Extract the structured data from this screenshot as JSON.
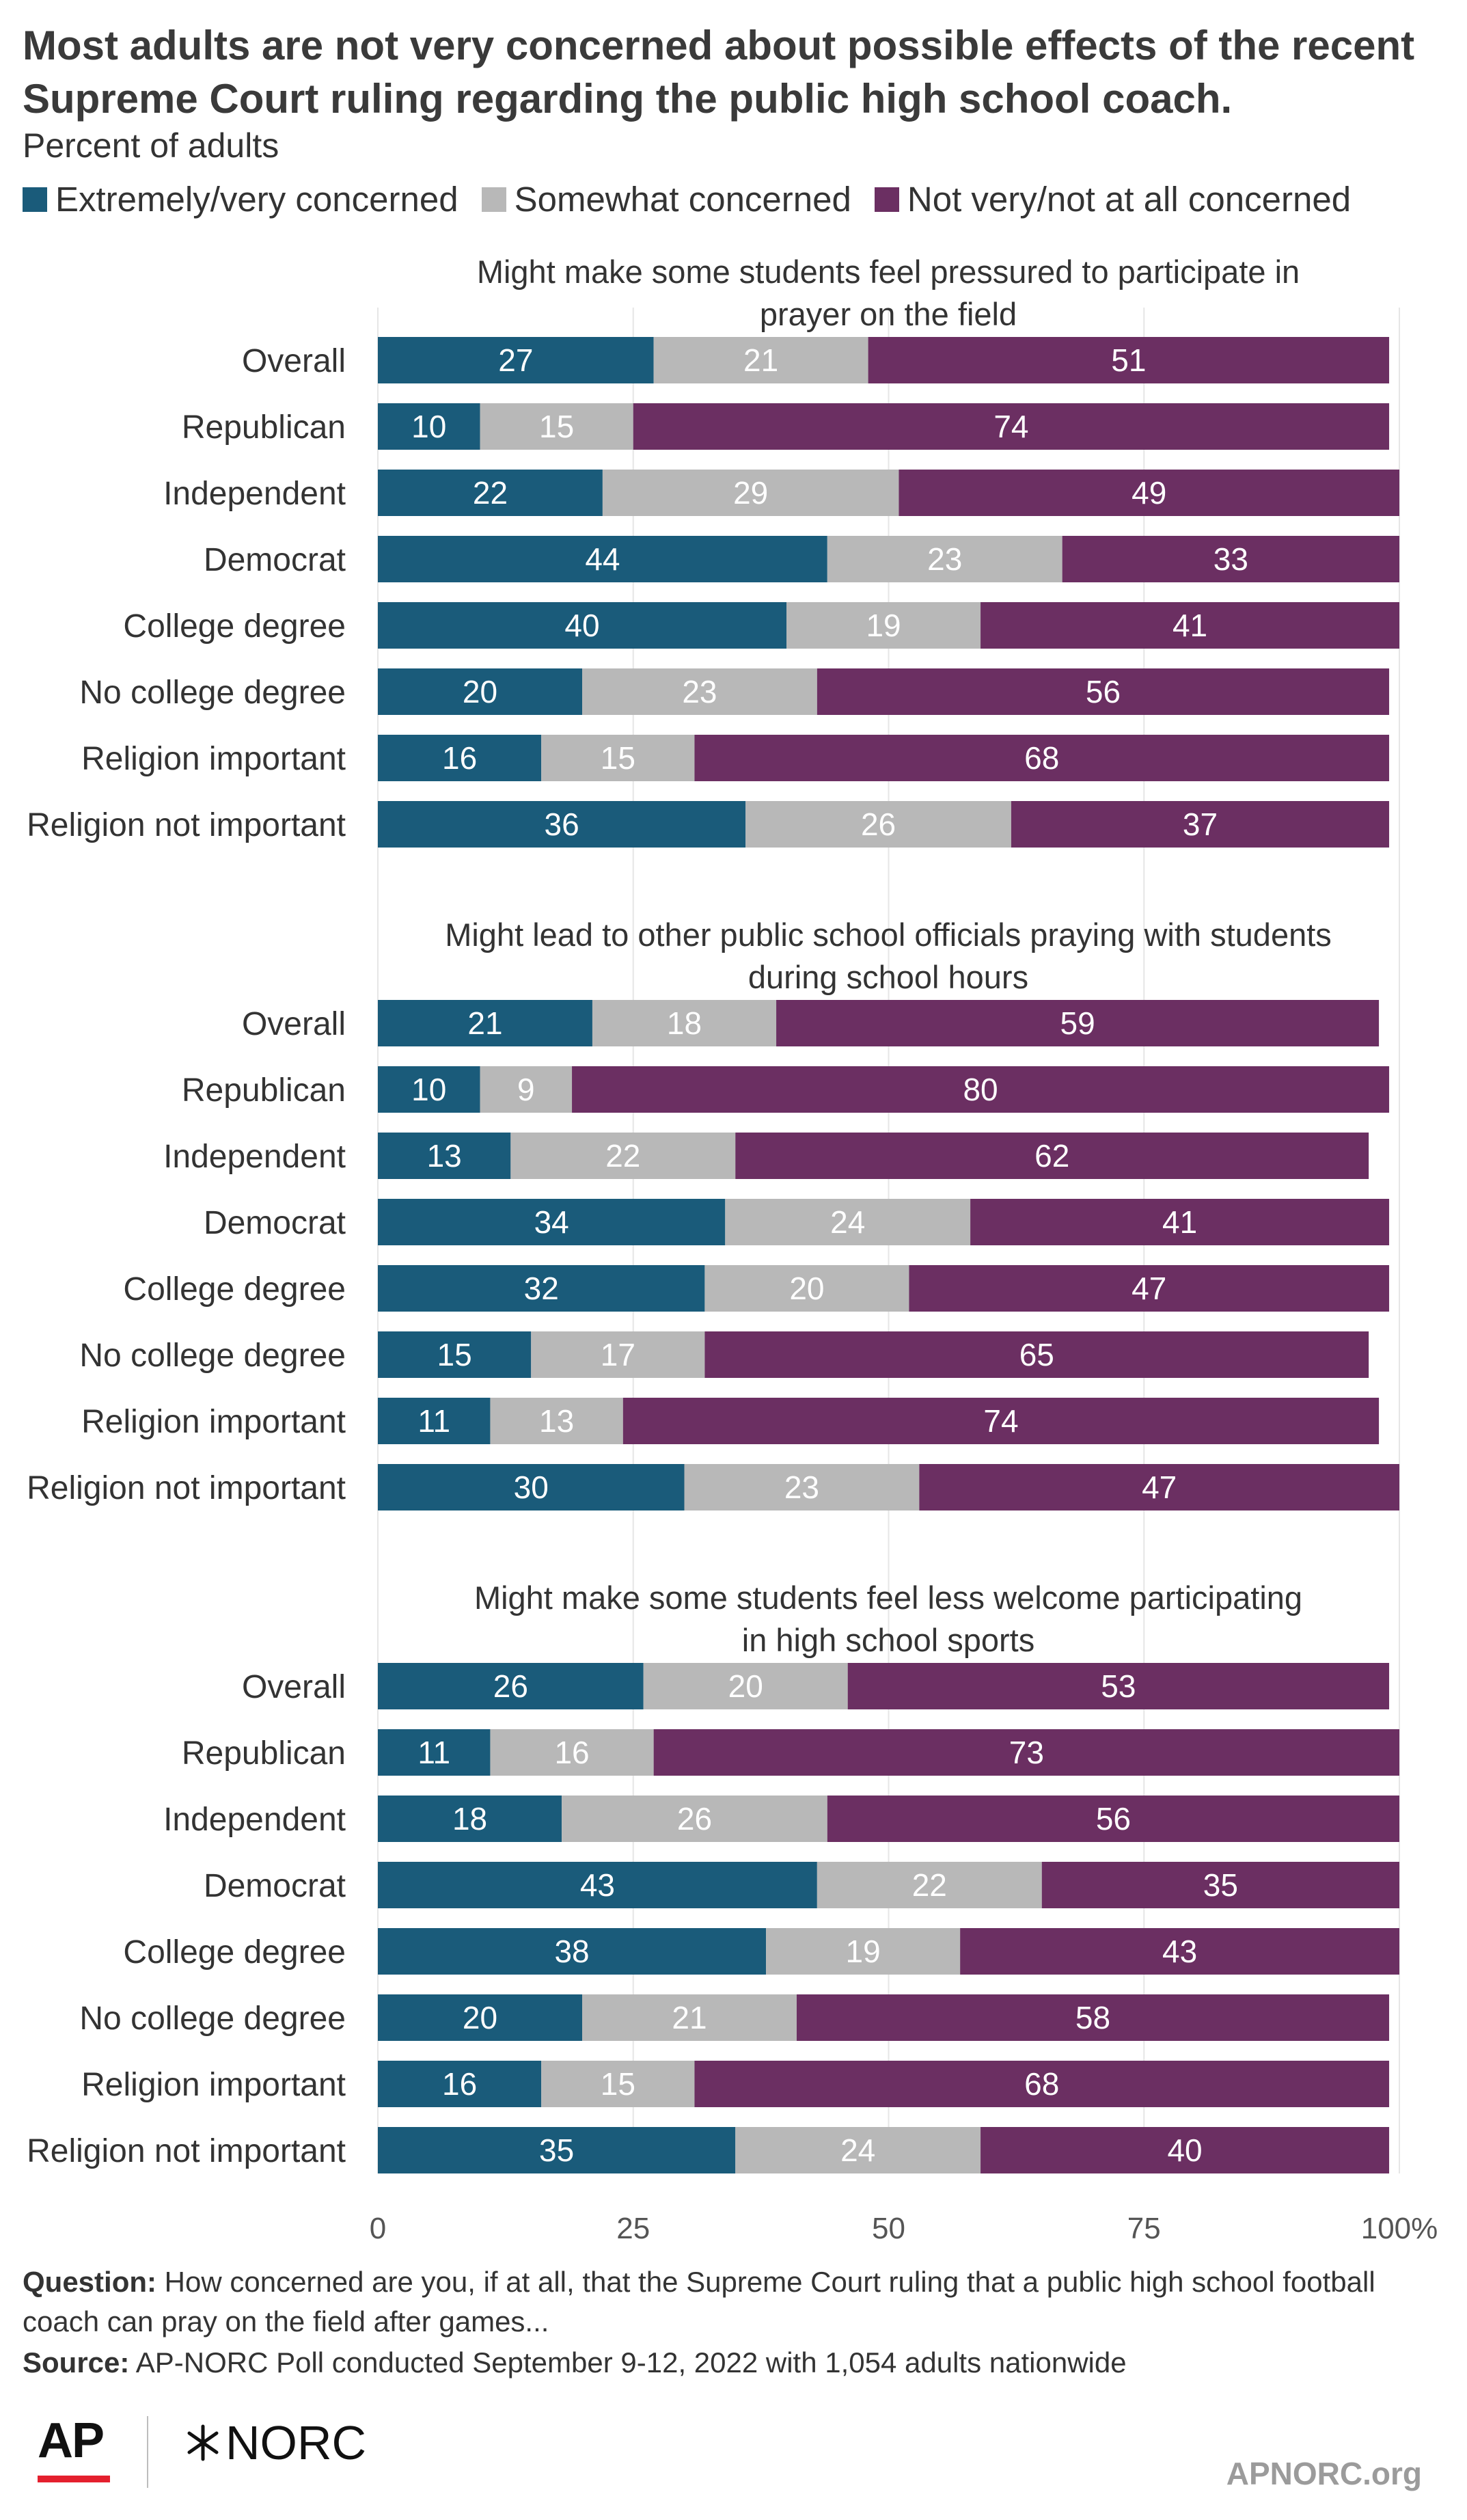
{
  "title": "Most adults are not very concerned about possible effects of the recent Supreme Court ruling regarding the public high school coach.",
  "subtitle": "Percent of adults",
  "legend": [
    {
      "label": "Extremely/very concerned",
      "color": "#1a5b7a"
    },
    {
      "label": "Somewhat concerned",
      "color": "#b8b8b8"
    },
    {
      "label": "Not very/not at all concerned",
      "color": "#6b2f62"
    }
  ],
  "chart_data": {
    "type": "bar",
    "orientation": "horizontal",
    "stacked": true,
    "xlim": [
      0,
      100
    ],
    "x_ticks": [
      "0",
      "25",
      "50",
      "75",
      "100%"
    ],
    "series_names": [
      "Extremely/very concerned",
      "Somewhat concerned",
      "Not very/not at all concerned"
    ],
    "panels": [
      {
        "title": "Might make some students feel pressured to participate in prayer on the field",
        "rows": [
          {
            "label": "Overall",
            "values": [
              27,
              21,
              51
            ]
          },
          {
            "label": "Republican",
            "values": [
              10,
              15,
              74
            ]
          },
          {
            "label": "Independent",
            "values": [
              22,
              29,
              49
            ]
          },
          {
            "label": "Democrat",
            "values": [
              44,
              23,
              33
            ]
          },
          {
            "label": "College degree",
            "values": [
              40,
              19,
              41
            ]
          },
          {
            "label": "No college degree",
            "values": [
              20,
              23,
              56
            ]
          },
          {
            "label": "Religion important",
            "values": [
              16,
              15,
              68
            ]
          },
          {
            "label": "Religion not important",
            "values": [
              36,
              26,
              37
            ]
          }
        ]
      },
      {
        "title": "Might lead to other public school officials praying with students during school hours",
        "rows": [
          {
            "label": "Overall",
            "values": [
              21,
              18,
              59
            ]
          },
          {
            "label": "Republican",
            "values": [
              10,
              9,
              80
            ]
          },
          {
            "label": "Independent",
            "values": [
              13,
              22,
              62
            ]
          },
          {
            "label": "Democrat",
            "values": [
              34,
              24,
              41
            ]
          },
          {
            "label": "College degree",
            "values": [
              32,
              20,
              47
            ]
          },
          {
            "label": "No college degree",
            "values": [
              15,
              17,
              65
            ]
          },
          {
            "label": "Religion important",
            "values": [
              11,
              13,
              74
            ]
          },
          {
            "label": "Religion not important",
            "values": [
              30,
              23,
              47
            ]
          }
        ]
      },
      {
        "title": "Might make some students feel less welcome participating in high school sports",
        "rows": [
          {
            "label": "Overall",
            "values": [
              26,
              20,
              53
            ]
          },
          {
            "label": "Republican",
            "values": [
              11,
              16,
              73
            ]
          },
          {
            "label": "Independent",
            "values": [
              18,
              26,
              56
            ]
          },
          {
            "label": "Democrat",
            "values": [
              43,
              22,
              35
            ]
          },
          {
            "label": "College degree",
            "values": [
              38,
              19,
              43
            ]
          },
          {
            "label": "No college degree",
            "values": [
              20,
              21,
              58
            ]
          },
          {
            "label": "Religion important",
            "values": [
              16,
              15,
              68
            ]
          },
          {
            "label": "Religion not important",
            "values": [
              35,
              24,
              40
            ]
          }
        ]
      }
    ]
  },
  "footer": {
    "question_label": "Question:",
    "question_text": "How concerned are you, if at all, that the Supreme Court ruling that a public high school football coach can pray on the field after games...",
    "source_label": "Source:",
    "source_text": "AP-NORC Poll conducted September 9-12, 2022 with 1,054 adults nationwide"
  },
  "logos": {
    "ap": "AP",
    "norc": "NORC",
    "norc_mark": "star-cross-icon"
  },
  "site": "APNORC.org"
}
